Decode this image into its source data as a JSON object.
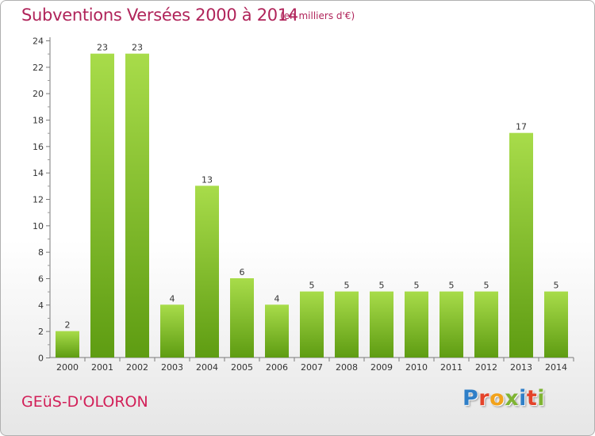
{
  "header": {
    "title": "Subventions Versées 2000 à 2014",
    "subtitle": "(en milliers d'€)"
  },
  "footer": {
    "commune": "GEüS-D'OLORON",
    "logo_letters": [
      "P",
      "r",
      "o",
      "x",
      "i",
      "t",
      "i"
    ]
  },
  "colors": {
    "bar_light": "#a8dc4a",
    "bar_dark": "#5e9c12",
    "title": "#b0245a",
    "commune": "#d21f58"
  },
  "chart_data": {
    "type": "bar",
    "title": "Subventions Versées 2000 à 2014",
    "subtitle": "(en milliers d'€)",
    "categories": [
      "2000",
      "2001",
      "2002",
      "2003",
      "2004",
      "2005",
      "2006",
      "2007",
      "2008",
      "2009",
      "2010",
      "2011",
      "2012",
      "2013",
      "2014"
    ],
    "values": [
      2,
      23,
      23,
      4,
      13,
      6,
      4,
      5,
      5,
      5,
      5,
      5,
      5,
      17,
      5
    ],
    "ylim": [
      0,
      24
    ],
    "yticks": [
      0,
      2,
      4,
      6,
      8,
      10,
      12,
      14,
      16,
      18,
      20,
      22,
      24
    ],
    "grid": false,
    "data_labels": true
  }
}
